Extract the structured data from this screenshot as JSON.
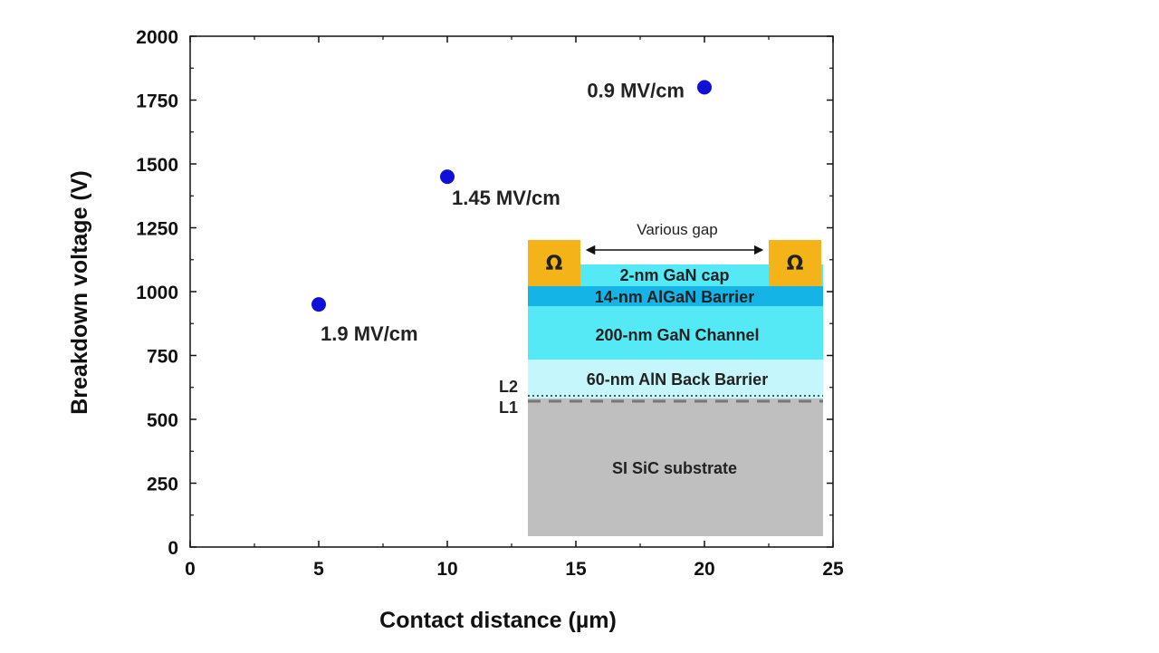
{
  "chart_data": {
    "type": "scatter",
    "xlabel": "Contact distance (µm)",
    "ylabel": "Breakdown voltage (V)",
    "xlim": [
      0,
      25
    ],
    "ylim": [
      0,
      2000
    ],
    "x_ticks": [
      "0",
      "5",
      "10",
      "15",
      "20",
      "25"
    ],
    "y_ticks": [
      "0",
      "250",
      "500",
      "750",
      "1000",
      "1250",
      "1500",
      "1750",
      "2000"
    ],
    "grid": false,
    "marker_color": "#1010d8",
    "points": [
      {
        "x": 5,
        "y": 950,
        "label": "1.9 MV/cm"
      },
      {
        "x": 10,
        "y": 1450,
        "label": "1.45 MV/cm"
      },
      {
        "x": 20,
        "y": 1800,
        "label": "0.9 MV/cm"
      }
    ]
  },
  "inset": {
    "gap_label": "Various gap",
    "contact_symbol": "Ω",
    "layers": {
      "cap": "2-nm GaN cap",
      "barrier": "14-nm AlGaN Barrier",
      "channel": "200-nm GaN Channel",
      "back_barrier": "60-nm AlN Back Barrier",
      "substrate": "SI SiC substrate"
    },
    "interface_labels": {
      "l2": "L2",
      "l1": "L1"
    },
    "colors": {
      "contact": "#f5b31a",
      "cap": "#55e8f5",
      "barrier": "#15b4e6",
      "channel": "#55e8f5",
      "back_barrier": "#c5f6fb",
      "substrate": "#bfbfbf"
    }
  }
}
